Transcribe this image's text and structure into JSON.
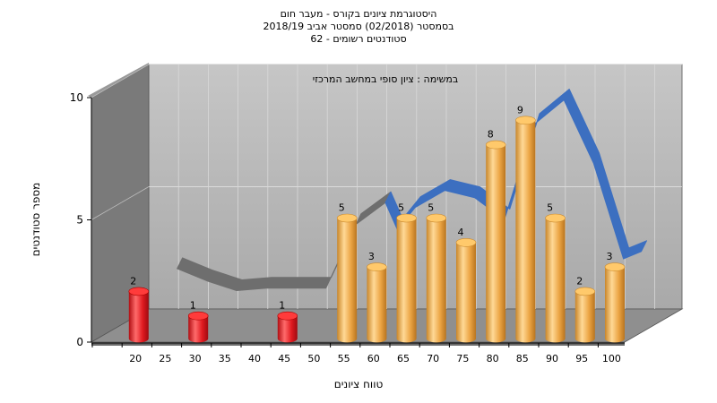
{
  "chart_data": {
    "type": "bar",
    "title_lines": [
      "היסטוגרמת ציונים בקורס - מעבר חום",
      "בסמסטר  (02/2018)  סמסטר אביב 2018/19",
      "סטודנטים רשומים - 62"
    ],
    "annotation": "במשימה : ציון סופי במחשב המרכזי",
    "xlabel": "טווח ציונים",
    "ylabel": "מספר סטודנטים",
    "x_ticks": [
      "20",
      "25",
      "30",
      "35",
      "40",
      "45",
      "50",
      "55",
      "60",
      "65",
      "70",
      "75",
      "80",
      "85",
      "90",
      "95",
      "100"
    ],
    "y_ticks": [
      "0",
      "5",
      "10"
    ],
    "ylim": [
      0,
      10
    ],
    "bars": [
      {
        "x": 20,
        "value": 2,
        "label": "2",
        "color": "red"
      },
      {
        "x": 30,
        "value": 1,
        "label": "1",
        "color": "red"
      },
      {
        "x": 45,
        "value": 1,
        "label": "1",
        "color": "red"
      },
      {
        "x": 55,
        "value": 5,
        "label": "5",
        "color": "orange"
      },
      {
        "x": 60,
        "value": 3,
        "label": "3",
        "color": "orange"
      },
      {
        "x": 65,
        "value": 5,
        "label": "5",
        "color": "orange"
      },
      {
        "x": 70,
        "value": 5,
        "label": "5",
        "color": "orange"
      },
      {
        "x": 75,
        "value": 4,
        "label": "4",
        "color": "orange"
      },
      {
        "x": 80,
        "value": 8,
        "label": "8",
        "color": "orange"
      },
      {
        "x": 85,
        "value": 9,
        "label": "9",
        "color": "orange"
      },
      {
        "x": 90,
        "value": 5,
        "label": "5",
        "color": "orange"
      },
      {
        "x": 95,
        "value": 2,
        "label": "2",
        "color": "orange"
      },
      {
        "x": 100,
        "value": 3,
        "label": "3",
        "color": "orange"
      }
    ],
    "curve_gray": [
      [
        25,
        2.7
      ],
      [
        30,
        2.2
      ],
      [
        35,
        1.8
      ],
      [
        40,
        1.9
      ],
      [
        45,
        1.9
      ],
      [
        50,
        1.9
      ],
      [
        55,
        4.5
      ],
      [
        60,
        5.4
      ]
    ],
    "curve_blue": [
      [
        60,
        5.4
      ],
      [
        62,
        4.3
      ],
      [
        65,
        5.2
      ],
      [
        70,
        5.9
      ],
      [
        75,
        5.6
      ],
      [
        80,
        4.7
      ],
      [
        85,
        8.6
      ],
      [
        90,
        9.6
      ],
      [
        95,
        7.0
      ],
      [
        100,
        3.1
      ],
      [
        103,
        3.4
      ]
    ],
    "colors": {
      "red": "#e0161c",
      "orange": "#f0a840",
      "blue": "#3c6fc0",
      "gray": "#6e6e6e",
      "wall": "#b3b3b3",
      "side_wall": "#7a7a7a"
    }
  }
}
